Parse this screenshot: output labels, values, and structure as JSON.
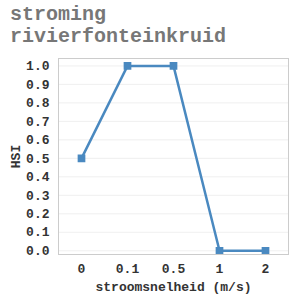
{
  "chart_data": {
    "type": "line",
    "title": "stroming rivierfonteinkruid",
    "x_label": "stroomsnelheid (m/s)",
    "y_label": "HSI",
    "categories": [
      "0",
      "0.1",
      "0.5",
      "1",
      "2"
    ],
    "values": [
      0.5,
      1.0,
      1.0,
      0.0,
      0.0
    ],
    "color": "#4a89c0",
    "marker": "square",
    "ylim": [
      -0.02,
      1.04
    ],
    "yticks": [
      {
        "value": 0,
        "label": "0.0"
      },
      {
        "value": 0.1,
        "label": "0.1"
      },
      {
        "value": 0.2,
        "label": "0.2"
      },
      {
        "value": 0.3,
        "label": "0.3"
      },
      {
        "value": 0.4,
        "label": "0.4"
      },
      {
        "value": 0.5,
        "label": "0.5"
      },
      {
        "value": 0.6,
        "label": "0.6"
      },
      {
        "value": 0.7,
        "label": "0.7"
      },
      {
        "value": 0.8,
        "label": "0.8"
      },
      {
        "value": 0.9,
        "label": "0.9"
      },
      {
        "value": 1,
        "label": "1.0"
      }
    ],
    "grid": true
  }
}
